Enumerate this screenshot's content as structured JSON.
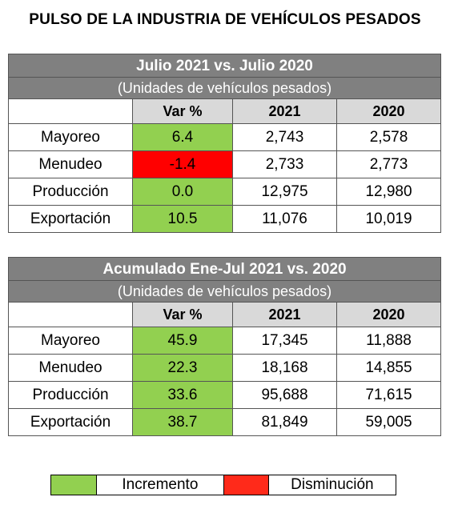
{
  "title": "PULSO DE LA INDUSTRIA DE VEHÍCULOS PESADOS",
  "table1": {
    "title": "Julio 2021 vs. Julio 2020",
    "subtitle": "(Unidades de vehículos pesados)",
    "headers": [
      "Var %",
      "2021",
      "2020"
    ],
    "rows": [
      {
        "label": "Mayoreo",
        "var": "6.4",
        "y2021": "2,743",
        "y2020": "2,578",
        "status": "increase"
      },
      {
        "label": "Menudeo",
        "var": "-1.4",
        "y2021": "2,733",
        "y2020": "2,773",
        "status": "decrease"
      },
      {
        "label": "Producción",
        "var": "0.0",
        "y2021": "12,975",
        "y2020": "12,980",
        "status": "increase"
      },
      {
        "label": "Exportación",
        "var": "10.5",
        "y2021": "11,076",
        "y2020": "10,019",
        "status": "increase"
      }
    ]
  },
  "table2": {
    "title": "Acumulado Ene-Jul 2021 vs. 2020",
    "subtitle": "(Unidades de vehículos pesados)",
    "headers": [
      "Var %",
      "2021",
      "2020"
    ],
    "rows": [
      {
        "label": "Mayoreo",
        "var": "45.9",
        "y2021": "17,345",
        "y2020": "11,888",
        "status": "increase"
      },
      {
        "label": "Menudeo",
        "var": "22.3",
        "y2021": "18,168",
        "y2020": "14,855",
        "status": "increase"
      },
      {
        "label": "Producción",
        "var": "33.6",
        "y2021": "95,688",
        "y2020": "71,615",
        "status": "increase"
      },
      {
        "label": "Exportación",
        "var": "38.7",
        "y2021": "81,849",
        "y2020": "59,005",
        "status": "increase"
      }
    ]
  },
  "legend": {
    "increase_label": "Incremento",
    "decrease_label": "Disminución",
    "increase_color": "#92d050",
    "decrease_color": "#ff0000"
  }
}
